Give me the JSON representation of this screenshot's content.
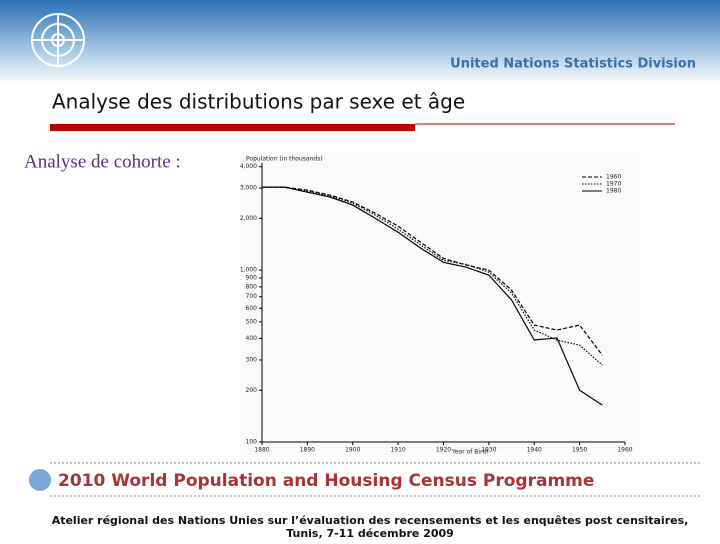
{
  "header": {
    "organization": "United Nations Statistics Division"
  },
  "title": "Analyse des distributions par sexe et âge",
  "subtitle": "Analyse de cohorte :",
  "chart_data": {
    "type": "line",
    "y_title": "Population (in thousands)",
    "x_title": "Year of Birth",
    "x": [
      1880,
      1885,
      1890,
      1895,
      1900,
      1905,
      1910,
      1915,
      1920,
      1925,
      1930,
      1935,
      1940,
      1945,
      1950,
      1955
    ],
    "series": [
      {
        "name": "1960",
        "color": "#000000",
        "style": "dashed",
        "values": [
          3040,
          3040,
          2920,
          2730,
          2490,
          2140,
          1800,
          1450,
          1170,
          1070,
          1000,
          765,
          479,
          448,
          479,
          320
        ]
      },
      {
        "name": "1970",
        "color": "#000000",
        "style": "dotted",
        "values": [
          3040,
          3040,
          2880,
          2700,
          2450,
          2090,
          1730,
          1400,
          1140,
          1080,
          973,
          735,
          448,
          392,
          366,
          280
        ]
      },
      {
        "name": "1980",
        "color": "#000000",
        "style": "solid",
        "values": [
          3040,
          3040,
          2840,
          2660,
          2390,
          2000,
          1660,
          1340,
          1110,
          1040,
          935,
          670,
          392,
          403,
          200,
          164
        ]
      }
    ],
    "xlim": [
      1880,
      1960
    ],
    "xticks": [
      1880,
      1890,
      1900,
      1910,
      1920,
      1930,
      1940,
      1950,
      1960
    ],
    "ylim": [
      100,
      4200
    ],
    "log_scale": true,
    "yticks": [
      100,
      200,
      300,
      400,
      500,
      600,
      700,
      800,
      900,
      {
        "value": 1000,
        "label": "1,000"
      },
      {
        "value": 2000,
        "label": "2,000"
      },
      {
        "value": 3000,
        "label": "3,000"
      },
      {
        "value": 4000,
        "label": "4,000"
      }
    ],
    "legend": "upper right"
  },
  "banner": "2010 World Population and Housing Census Programme",
  "footer": {
    "line1": "Atelier régional des Nations Unies sur l’évaluation des recensements et les enquêtes post censitaires,",
    "line2": "Tunis, 7-11 décembre 2009"
  }
}
